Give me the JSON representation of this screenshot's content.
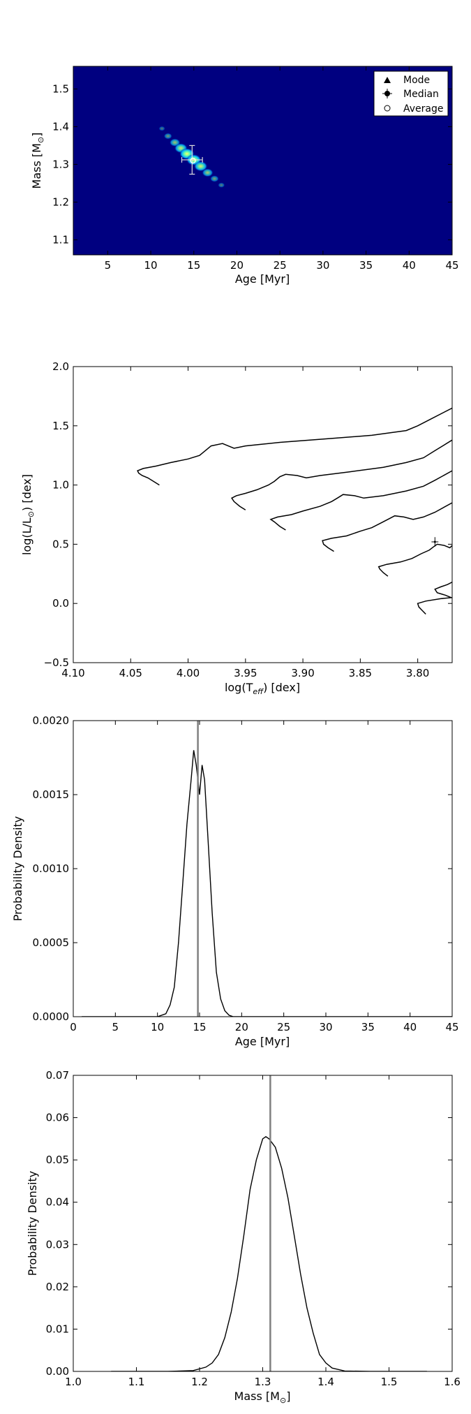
{
  "chart_data": [
    {
      "type": "heatmap",
      "xlabel": "Age [Myr]",
      "ylabel": "Mass [M",
      "ylabel_sub": "⊙",
      "ylabel_end": "]",
      "xlim": [
        1,
        45
      ],
      "ylim": [
        1.06,
        1.56
      ],
      "xticks": [
        5,
        10,
        15,
        20,
        25,
        30,
        35,
        40,
        45
      ],
      "yticks": [
        1.1,
        1.2,
        1.3,
        1.4,
        1.5
      ],
      "xticklabels": [
        "5",
        "10",
        "15",
        "20",
        "25",
        "30",
        "35",
        "40",
        "45"
      ],
      "yticklabels": [
        "1.1",
        "1.2",
        "1.3",
        "1.4",
        "1.5"
      ],
      "background_color": "#000080",
      "density_ridge": [
        {
          "age": 11.3,
          "mass": 1.395,
          "level": 0.1
        },
        {
          "age": 12.0,
          "mass": 1.375,
          "level": 0.3
        },
        {
          "age": 12.8,
          "mass": 1.358,
          "level": 0.55
        },
        {
          "age": 13.5,
          "mass": 1.343,
          "level": 0.8
        },
        {
          "age": 14.2,
          "mass": 1.328,
          "level": 1.0
        },
        {
          "age": 15.0,
          "mass": 1.312,
          "level": 1.0
        },
        {
          "age": 15.8,
          "mass": 1.295,
          "level": 0.85
        },
        {
          "age": 16.6,
          "mass": 1.278,
          "level": 0.6
        },
        {
          "age": 17.4,
          "mass": 1.262,
          "level": 0.35
        },
        {
          "age": 18.2,
          "mass": 1.245,
          "level": 0.15
        }
      ],
      "markers": {
        "median": {
          "age": 14.8,
          "mass": 1.312,
          "age_err": 1.2,
          "mass_err": 0.038
        },
        "average": {
          "age": 14.9,
          "mass": 1.31
        }
      },
      "legend": {
        "position": "upper right",
        "items": [
          {
            "label": "Mode",
            "marker": "triangle"
          },
          {
            "label": "Median",
            "marker": "errorbar-dot"
          },
          {
            "label": "Average",
            "marker": "open-circle"
          }
        ]
      }
    },
    {
      "type": "line",
      "xlabel": "log(T",
      "xlabel_sub": "eff",
      "xlabel_end": ") [dex]",
      "ylabel": "log(L/L",
      "ylabel_sub": "⊙",
      "ylabel_end": ") [dex]",
      "xlim": [
        4.1,
        3.77
      ],
      "ylim": [
        -0.5,
        2.0
      ],
      "xticks": [
        4.1,
        4.05,
        4.0,
        3.95,
        3.9,
        3.85,
        3.8
      ],
      "yticks": [
        -0.5,
        0.0,
        0.5,
        1.0,
        1.5,
        2.0
      ],
      "xticklabels": [
        "4.10",
        "4.05",
        "4.00",
        "3.95",
        "3.90",
        "3.85",
        "3.80"
      ],
      "yticklabels": [
        "−0.5",
        "0.0",
        "0.5",
        "1.0",
        "1.5",
        "2.0"
      ],
      "series": [
        {
          "points": [
            [
              4.025,
              1.0
            ],
            [
              4.03,
              1.03
            ],
            [
              4.035,
              1.06
            ],
            [
              4.04,
              1.08
            ],
            [
              4.043,
              1.1
            ],
            [
              4.044,
              1.12
            ],
            [
              4.039,
              1.14
            ],
            [
              4.028,
              1.16
            ],
            [
              4.015,
              1.19
            ],
            [
              4.0,
              1.22
            ],
            [
              3.99,
              1.25
            ],
            [
              3.985,
              1.29
            ],
            [
              3.98,
              1.33
            ],
            [
              3.97,
              1.35
            ],
            [
              3.965,
              1.33
            ],
            [
              3.96,
              1.31
            ],
            [
              3.95,
              1.33
            ],
            [
              3.92,
              1.36
            ],
            [
              3.88,
              1.39
            ],
            [
              3.84,
              1.42
            ],
            [
              3.81,
              1.46
            ],
            [
              3.8,
              1.5
            ],
            [
              3.79,
              1.55
            ],
            [
              3.77,
              1.65
            ]
          ]
        },
        {
          "points": [
            [
              3.95,
              0.79
            ],
            [
              3.955,
              0.82
            ],
            [
              3.96,
              0.86
            ],
            [
              3.962,
              0.89
            ],
            [
              3.958,
              0.91
            ],
            [
              3.95,
              0.93
            ],
            [
              3.94,
              0.96
            ],
            [
              3.93,
              1.0
            ],
            [
              3.925,
              1.03
            ],
            [
              3.92,
              1.07
            ],
            [
              3.915,
              1.09
            ],
            [
              3.905,
              1.08
            ],
            [
              3.897,
              1.06
            ],
            [
              3.885,
              1.08
            ],
            [
              3.86,
              1.11
            ],
            [
              3.83,
              1.15
            ],
            [
              3.81,
              1.19
            ],
            [
              3.795,
              1.23
            ],
            [
              3.785,
              1.29
            ],
            [
              3.77,
              1.38
            ]
          ]
        },
        {
          "points": [
            [
              3.915,
              0.62
            ],
            [
              3.92,
              0.65
            ],
            [
              3.925,
              0.69
            ],
            [
              3.928,
              0.71
            ],
            [
              3.922,
              0.73
            ],
            [
              3.91,
              0.75
            ],
            [
              3.9,
              0.78
            ],
            [
              3.885,
              0.82
            ],
            [
              3.875,
              0.86
            ],
            [
              3.87,
              0.89
            ],
            [
              3.865,
              0.92
            ],
            [
              3.855,
              0.91
            ],
            [
              3.847,
              0.89
            ],
            [
              3.83,
              0.91
            ],
            [
              3.81,
              0.95
            ],
            [
              3.795,
              0.99
            ],
            [
              3.785,
              1.04
            ],
            [
              3.77,
              1.12
            ]
          ]
        },
        {
          "points": [
            [
              3.873,
              0.44
            ],
            [
              3.878,
              0.47
            ],
            [
              3.882,
              0.5
            ],
            [
              3.883,
              0.53
            ],
            [
              3.875,
              0.55
            ],
            [
              3.862,
              0.57
            ],
            [
              3.85,
              0.61
            ],
            [
              3.84,
              0.64
            ],
            [
              3.832,
              0.68
            ],
            [
              3.826,
              0.71
            ],
            [
              3.82,
              0.74
            ],
            [
              3.812,
              0.73
            ],
            [
              3.804,
              0.71
            ],
            [
              3.795,
              0.73
            ],
            [
              3.785,
              0.77
            ],
            [
              3.77,
              0.85
            ]
          ]
        },
        {
          "points": [
            [
              3.826,
              0.23
            ],
            [
              3.83,
              0.26
            ],
            [
              3.833,
              0.29
            ],
            [
              3.834,
              0.31
            ],
            [
              3.827,
              0.33
            ],
            [
              3.815,
              0.35
            ],
            [
              3.805,
              0.38
            ],
            [
              3.797,
              0.42
            ],
            [
              3.79,
              0.45
            ],
            [
              3.786,
              0.48
            ],
            [
              3.783,
              0.5
            ],
            [
              3.777,
              0.49
            ],
            [
              3.772,
              0.47
            ],
            [
              3.77,
              0.49
            ]
          ]
        },
        {
          "points": [
            [
              3.771,
              0.05
            ],
            [
              3.776,
              0.07
            ],
            [
              3.783,
              0.09
            ],
            [
              3.785,
              0.12
            ],
            [
              3.78,
              0.14
            ],
            [
              3.774,
              0.16
            ],
            [
              3.77,
              0.18
            ]
          ]
        },
        {
          "points": [
            [
              3.793,
              -0.09
            ],
            [
              3.796,
              -0.06
            ],
            [
              3.799,
              -0.03
            ],
            [
              3.8,
              0.0
            ],
            [
              3.793,
              0.02
            ],
            [
              3.78,
              0.04
            ],
            [
              3.77,
              0.05
            ]
          ]
        }
      ],
      "point": {
        "x": 3.785,
        "y": 0.52,
        "x_err": 0.003,
        "y_err": 0.04
      }
    },
    {
      "type": "line",
      "xlabel": "Age [Myr]",
      "ylabel": "Probability Density",
      "xlim": [
        0,
        45
      ],
      "ylim": [
        0,
        0.002
      ],
      "xticks": [
        0,
        5,
        10,
        15,
        20,
        25,
        30,
        35,
        40,
        45
      ],
      "yticks": [
        0.0,
        0.0005,
        0.001,
        0.0015,
        0.002
      ],
      "xticklabels": [
        "0",
        "5",
        "10",
        "15",
        "20",
        "25",
        "30",
        "35",
        "40",
        "45"
      ],
      "yticklabels": [
        "0.0000",
        "0.0005",
        "0.0010",
        "0.0015",
        "0.0020"
      ],
      "x": [
        1,
        10,
        11,
        11.5,
        12,
        12.5,
        13,
        13.5,
        14,
        14.3,
        14.6,
        15,
        15.3,
        15.6,
        16,
        16.5,
        17,
        17.5,
        18,
        18.5,
        19,
        20,
        45
      ],
      "y": [
        0.0,
        0.0,
        2e-05,
        8e-05,
        0.0002,
        0.0005,
        0.0009,
        0.0013,
        0.0016,
        0.0018,
        0.0017,
        0.0015,
        0.0017,
        0.0016,
        0.0012,
        0.0007,
        0.0003,
        0.00012,
        4e-05,
        1e-05,
        0.0,
        0.0,
        0.0
      ],
      "vline": 14.8
    },
    {
      "type": "line",
      "xlabel": "Mass [M",
      "xlabel_sub": "⊙",
      "xlabel_end": "]",
      "ylabel": "Probability Density",
      "xlim": [
        1.0,
        1.6
      ],
      "ylim": [
        0,
        0.07
      ],
      "xticks": [
        1.0,
        1.1,
        1.2,
        1.3,
        1.4,
        1.5,
        1.6
      ],
      "yticks": [
        0.0,
        0.01,
        0.02,
        0.03,
        0.04,
        0.05,
        0.06,
        0.07
      ],
      "xticklabels": [
        "1.0",
        "1.1",
        "1.2",
        "1.3",
        "1.4",
        "1.5",
        "1.6"
      ],
      "yticklabels": [
        "0.00",
        "0.01",
        "0.02",
        "0.03",
        "0.04",
        "0.05",
        "0.06",
        "0.07"
      ],
      "x": [
        1.06,
        1.15,
        1.19,
        1.21,
        1.22,
        1.23,
        1.24,
        1.25,
        1.26,
        1.27,
        1.28,
        1.29,
        1.3,
        1.305,
        1.31,
        1.32,
        1.33,
        1.34,
        1.35,
        1.36,
        1.37,
        1.38,
        1.39,
        1.4,
        1.41,
        1.43,
        1.47,
        1.56
      ],
      "y": [
        0.0,
        0.0,
        0.0002,
        0.001,
        0.002,
        0.004,
        0.008,
        0.014,
        0.022,
        0.032,
        0.043,
        0.05,
        0.055,
        0.0555,
        0.055,
        0.053,
        0.048,
        0.041,
        0.032,
        0.023,
        0.015,
        0.009,
        0.004,
        0.002,
        0.0008,
        0.0001,
        0.0,
        0.0
      ],
      "vline": 1.312
    }
  ],
  "colors": {
    "line": "#000000",
    "vline": "#808080",
    "heat_low": "#000080",
    "heat_mid": "#00c8ff",
    "heat_high": "#ffff00"
  }
}
